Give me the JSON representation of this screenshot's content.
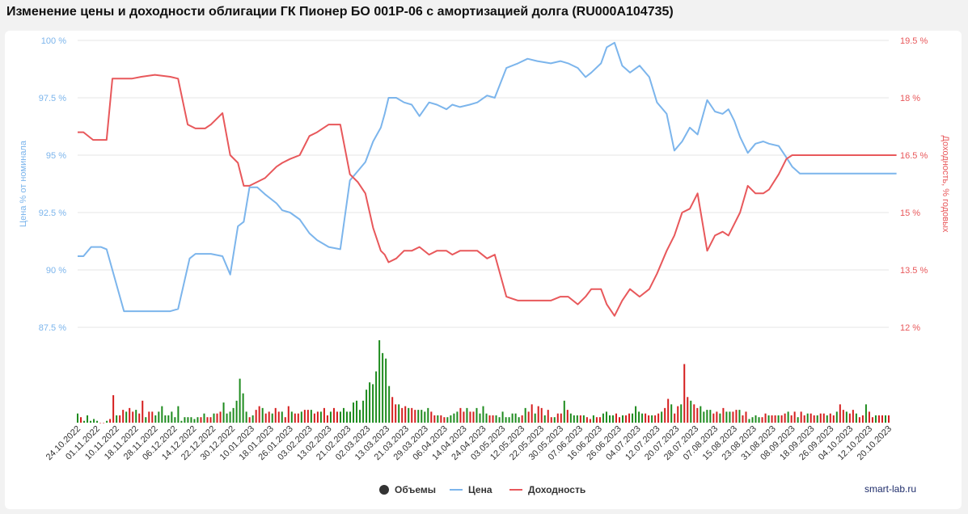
{
  "page": {
    "title": "Изменение цены и доходности облигации ГК Пионер БО 001Р-06 с амортизацией долга (RU000A104735)",
    "watermark": "smart-lab.ru"
  },
  "colors": {
    "price": "#7cb5ec",
    "yield": "#e8585b",
    "volume_up": "#1e8b1e",
    "volume_down": "#d51e1e",
    "grid": "#e6e6e6",
    "legend_volume": "#333333"
  },
  "legend": {
    "volumes": "Объемы",
    "price": "Цена",
    "yield": "Доходность"
  },
  "chart_data": {
    "type": "line",
    "title": "Изменение цены и доходности облигации ГК Пионер БО 001Р-06 с амортизацией долга (RU000A104735)",
    "legend_position": "bottom",
    "grid": true,
    "x_tick_labels": [
      "24.10.2022",
      "01.11.2022",
      "10.11.2022",
      "18.11.2022",
      "28.11.2022",
      "06.12.2022",
      "14.12.2022",
      "22.12.2022",
      "30.12.2022",
      "10.01.2023",
      "18.01.2023",
      "26.01.2023",
      "03.02.2023",
      "13.02.2023",
      "21.02.2023",
      "02.03.2023",
      "13.03.2023",
      "21.03.2023",
      "29.03.2023",
      "06.04.2023",
      "14.04.2023",
      "24.04.2023",
      "03.05.2023",
      "12.05.2023",
      "22.05.2023",
      "30.05.2023",
      "07.06.2023",
      "16.06.2023",
      "26.06.2023",
      "04.07.2023",
      "12.07.2023",
      "20.07.2023",
      "28.07.2023",
      "07.08.2023",
      "15.08.2023",
      "23.08.2023",
      "31.08.2023",
      "08.09.2023",
      "18.09.2023",
      "26.09.2023",
      "04.10.2023",
      "12.10.2023",
      "20.10.2023"
    ],
    "y_left": {
      "label": "Цена % от номинала",
      "ticks": [
        "87.5 %",
        "90 %",
        "92.5 %",
        "95 %",
        "97.5 %",
        "100 %"
      ],
      "range": [
        87.5,
        100
      ]
    },
    "y_right": {
      "label": "Доходность, % годовых",
      "ticks": [
        "12 %",
        "13.5 %",
        "15 %",
        "16.5 %",
        "18 %",
        "19.5 %"
      ],
      "range": [
        12,
        19.5
      ]
    },
    "series": [
      {
        "name": "Цена",
        "axis": "left",
        "t": [
          0,
          0.3,
          0.7,
          1.2,
          1.5,
          2.4,
          2.9,
          3.3,
          4.0,
          4.8,
          5.2,
          5.8,
          6.1,
          6.6,
          6.9,
          7.5,
          7.9,
          8.3,
          8.6,
          8.9,
          9.3,
          9.7,
          10.3,
          10.6,
          11.0,
          11.5,
          12.0,
          12.4,
          13.0,
          13.6,
          14.1,
          14.5,
          14.9,
          15.3,
          15.7,
          15.9,
          16.1,
          16.5,
          16.9,
          17.3,
          17.7,
          18.2,
          18.6,
          19.1,
          19.4,
          19.8,
          20.3,
          20.7,
          21.2,
          21.6,
          22.2,
          22.8,
          23.3,
          23.8,
          24.5,
          25.0,
          25.4,
          25.9,
          26.3,
          26.6,
          27.1,
          27.4,
          27.8,
          28.2,
          28.6,
          29.1,
          29.6,
          30.0,
          30.5,
          30.9,
          31.3,
          31.7,
          32.1,
          32.6,
          33.0,
          33.4,
          33.7,
          34.0,
          34.3,
          34.7,
          35.1,
          35.5,
          35.8,
          36.3,
          36.7,
          37.0,
          37.4,
          37.7,
          38.0,
          38.3,
          38.6,
          39.0,
          39.3,
          39.6,
          40.0,
          40.4,
          40.8,
          41.2,
          41.6,
          42.0,
          42.4
        ],
        "values": [
          90.6,
          90.6,
          91.0,
          91.0,
          90.9,
          88.2,
          88.2,
          88.2,
          88.2,
          88.2,
          88.3,
          90.5,
          90.7,
          90.7,
          90.7,
          90.6,
          89.8,
          91.9,
          92.1,
          93.6,
          93.6,
          93.3,
          92.9,
          92.6,
          92.5,
          92.2,
          91.6,
          91.3,
          91.0,
          90.9,
          93.9,
          94.3,
          94.7,
          95.6,
          96.2,
          96.8,
          97.5,
          97.5,
          97.3,
          97.2,
          96.7,
          97.3,
          97.2,
          97.0,
          97.2,
          97.1,
          97.2,
          97.3,
          97.6,
          97.5,
          98.8,
          99.0,
          99.2,
          99.1,
          99.0,
          99.1,
          99.0,
          98.8,
          98.4,
          98.6,
          99.0,
          99.7,
          99.9,
          98.9,
          98.6,
          98.9,
          98.4,
          97.3,
          96.8,
          95.2,
          95.6,
          96.2,
          95.9,
          97.4,
          96.9,
          96.8,
          97.0,
          96.5,
          95.8,
          95.1,
          95.5,
          95.6,
          95.5,
          95.4,
          94.9,
          94.5,
          94.2,
          94.2,
          94.2,
          94.2,
          94.2,
          94.2,
          94.2,
          94.2,
          94.2,
          94.2,
          94.2,
          94.2,
          94.2,
          94.2,
          94.2
        ]
      },
      {
        "name": "Доходность",
        "axis": "right",
        "t": [
          0,
          0.3,
          0.8,
          1.5,
          1.8,
          2.3,
          2.8,
          3.3,
          4.0,
          4.8,
          5.2,
          5.7,
          6.1,
          6.6,
          6.9,
          7.5,
          7.9,
          8.3,
          8.6,
          8.9,
          9.3,
          9.7,
          10.3,
          10.6,
          11.0,
          11.5,
          12.0,
          12.4,
          13.0,
          13.6,
          14.1,
          14.5,
          14.9,
          15.3,
          15.7,
          15.9,
          16.1,
          16.5,
          16.9,
          17.3,
          17.7,
          18.2,
          18.6,
          19.1,
          19.4,
          19.8,
          20.3,
          20.7,
          21.2,
          21.6,
          22.2,
          22.8,
          23.3,
          23.8,
          24.5,
          25.0,
          25.4,
          25.9,
          26.3,
          26.6,
          27.1,
          27.4,
          27.8,
          28.2,
          28.6,
          29.1,
          29.6,
          30.0,
          30.5,
          30.9,
          31.3,
          31.7,
          32.1,
          32.6,
          33.0,
          33.4,
          33.7,
          34.0,
          34.3,
          34.7,
          35.1,
          35.5,
          35.8,
          36.3,
          36.7,
          37.0,
          37.4,
          37.7,
          38.0,
          38.3,
          38.6,
          39.0,
          39.3,
          39.6,
          40.0,
          40.4,
          40.8,
          41.2,
          41.6,
          42.0,
          42.4
        ],
        "values": [
          17.1,
          17.1,
          16.9,
          16.9,
          18.5,
          18.5,
          18.5,
          18.55,
          18.6,
          18.55,
          18.5,
          17.3,
          17.2,
          17.2,
          17.3,
          17.6,
          16.5,
          16.3,
          15.7,
          15.7,
          15.8,
          15.9,
          16.2,
          16.3,
          16.4,
          16.5,
          17.0,
          17.1,
          17.3,
          17.3,
          16.0,
          15.8,
          15.5,
          14.6,
          14.0,
          13.9,
          13.7,
          13.8,
          14.0,
          14.0,
          14.1,
          13.9,
          14.0,
          14.0,
          13.9,
          14.0,
          14.0,
          14.0,
          13.8,
          13.9,
          12.8,
          12.7,
          12.7,
          12.7,
          12.7,
          12.8,
          12.8,
          12.6,
          12.8,
          13.0,
          13.0,
          12.6,
          12.3,
          12.7,
          13.0,
          12.8,
          13.0,
          13.4,
          14.0,
          14.4,
          15.0,
          15.1,
          15.5,
          14.0,
          14.4,
          14.5,
          14.4,
          14.7,
          15.0,
          15.7,
          15.5,
          15.5,
          15.6,
          16.0,
          16.4,
          16.5,
          16.5,
          16.5,
          16.5,
          16.5,
          16.5,
          16.5,
          16.5,
          16.5,
          16.5,
          16.5,
          16.5,
          16.5,
          16.5,
          16.5,
          16.5
        ]
      },
      {
        "name": "Объемы",
        "axis": "volume",
        "t_step": 0.168,
        "values": [
          5,
          3,
          1,
          4,
          1,
          2,
          1,
          0,
          0,
          1,
          2,
          15,
          4,
          4,
          7,
          6,
          8,
          6,
          7,
          5,
          12,
          3,
          6,
          6,
          4,
          6,
          9,
          4,
          4,
          6,
          3,
          9,
          1,
          3,
          3,
          3,
          2,
          3,
          3,
          5,
          3,
          3,
          5,
          5,
          6,
          11,
          5,
          6,
          8,
          12,
          24,
          16,
          6,
          3,
          4,
          7,
          9,
          8,
          5,
          6,
          5,
          8,
          6,
          6,
          3,
          9,
          6,
          5,
          5,
          6,
          7,
          7,
          7,
          5,
          6,
          6,
          8,
          4,
          6,
          8,
          6,
          6,
          8,
          6,
          6,
          11,
          12,
          7,
          12,
          18,
          22,
          21,
          28,
          45,
          38,
          35,
          20,
          14,
          10,
          10,
          8,
          9,
          8,
          8,
          7,
          7,
          7,
          6,
          8,
          6,
          4,
          4,
          4,
          3,
          3,
          4,
          5,
          6,
          8,
          6,
          8,
          6,
          6,
          8,
          5,
          9,
          5,
          4,
          4,
          4,
          3,
          6,
          3,
          3,
          5,
          5,
          3,
          4,
          8,
          6,
          10,
          5,
          9,
          8,
          4,
          7,
          3,
          3,
          5,
          5,
          12,
          7,
          5,
          4,
          4,
          4,
          4,
          3,
          2,
          4,
          3,
          3,
          5,
          6,
          4,
          4,
          5,
          3,
          4,
          4,
          5,
          5,
          9,
          6,
          5,
          5,
          4,
          4,
          4,
          5,
          6,
          8,
          13,
          10,
          5,
          9,
          10,
          32,
          14,
          12,
          10,
          8,
          9,
          6,
          7,
          7,
          5,
          6,
          5,
          8,
          6,
          6,
          6,
          7,
          7,
          4,
          6,
          2,
          3,
          4,
          3,
          3,
          5,
          4,
          4,
          4,
          4,
          4,
          5,
          6,
          4,
          6,
          3,
          6,
          4,
          5,
          5,
          4,
          4,
          5,
          5,
          4,
          5,
          4,
          6,
          10,
          7,
          6,
          5,
          7,
          5,
          3,
          4,
          10,
          6,
          3,
          4,
          4,
          4,
          4,
          4,
          4,
          4,
          3,
          4,
          3,
          3,
          3,
          2,
          3,
          4,
          5,
          6,
          5,
          4,
          4,
          5,
          5,
          4,
          3,
          4,
          4,
          4,
          3,
          6,
          3,
          4,
          4,
          5,
          5,
          3,
          3,
          3,
          4,
          2,
          3,
          3,
          3,
          4,
          4,
          4,
          3,
          3,
          3,
          3,
          3,
          2,
          3,
          3,
          3,
          2,
          3,
          4,
          4,
          3,
          2,
          3,
          3,
          2,
          3,
          3,
          3,
          3,
          2,
          3,
          3,
          2,
          2,
          2,
          2,
          2,
          3,
          3,
          2,
          2,
          2,
          2,
          3,
          3,
          3,
          2,
          2,
          2,
          3,
          3
        ],
        "directions": "mixed"
      }
    ]
  }
}
